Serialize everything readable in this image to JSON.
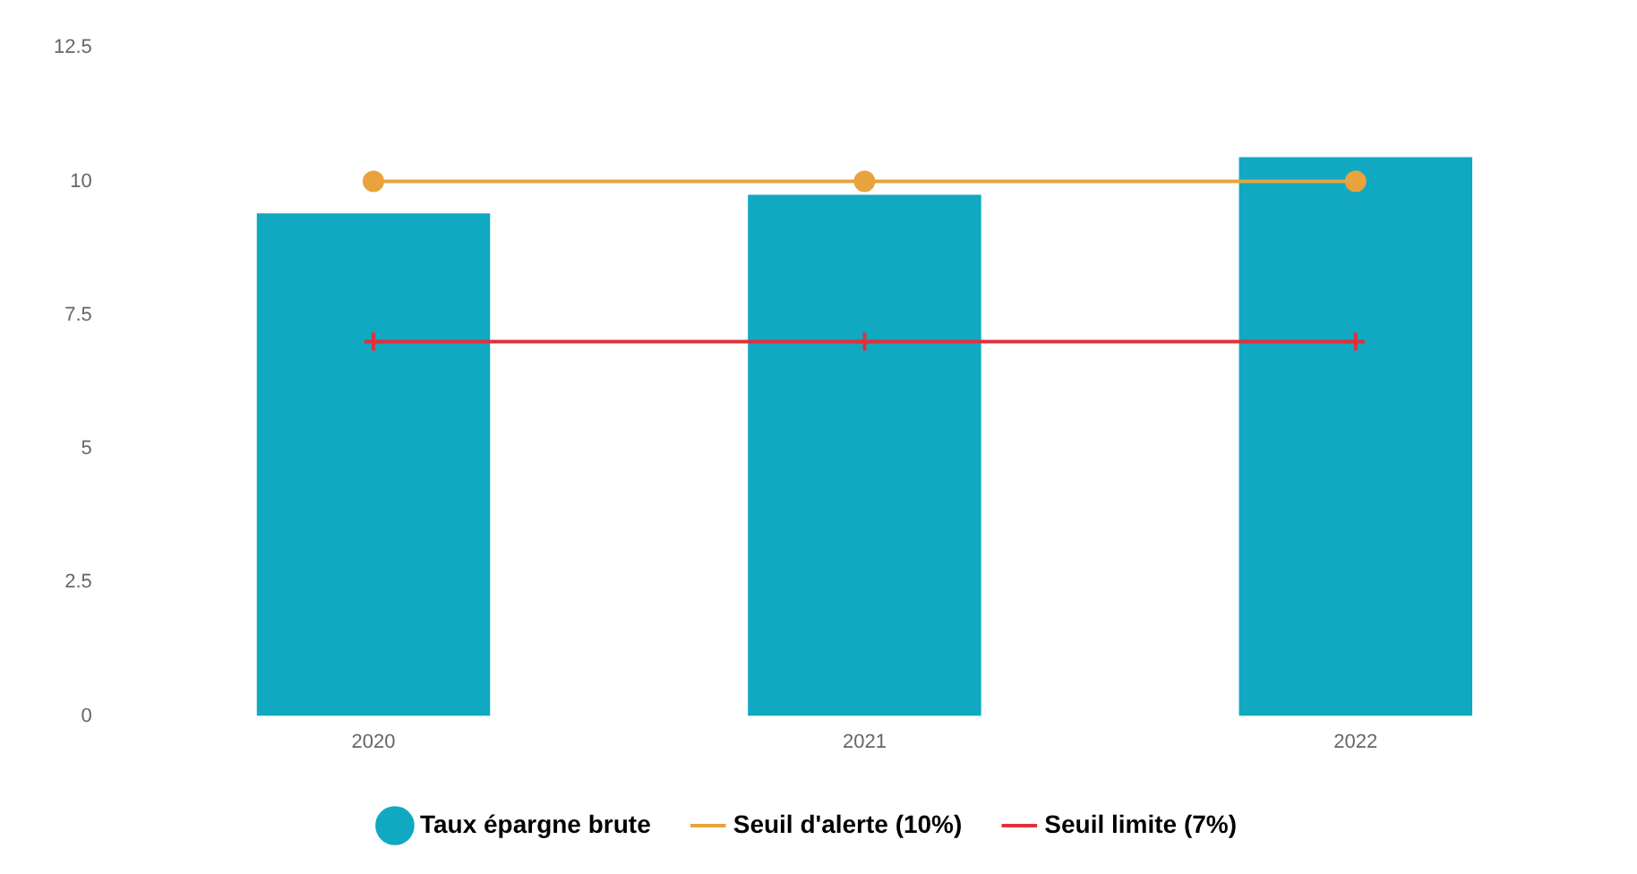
{
  "chart_data": {
    "type": "bar",
    "categories": [
      "2020",
      "2021",
      "2022"
    ],
    "series": [
      {
        "name": "Taux épargne brute",
        "color": "#10a9c1",
        "values": [
          9.4,
          9.75,
          10.45
        ]
      },
      {
        "name": "Seuil d'alerte (10%)",
        "type": "line",
        "color": "#e8a33d",
        "marker": "circle",
        "values": [
          10,
          10,
          10
        ]
      },
      {
        "name": "Seuil limite (7%)",
        "type": "line",
        "color": "#e0303a",
        "marker": "cross",
        "values": [
          7,
          7,
          7
        ]
      }
    ],
    "ylim": [
      0,
      12.5
    ],
    "yticks": [
      0,
      2.5,
      5,
      7.5,
      10,
      12.5
    ],
    "grid": false,
    "legend": "bottom"
  }
}
